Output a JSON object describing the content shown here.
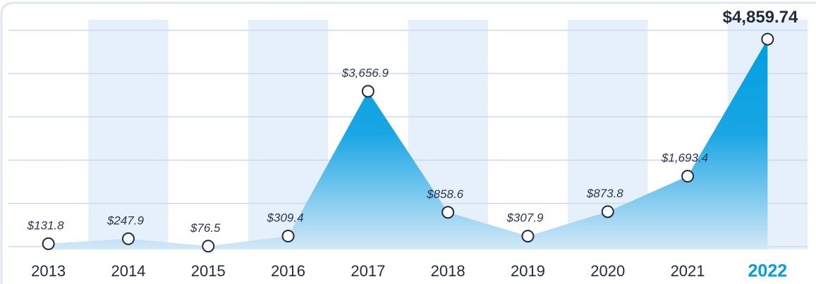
{
  "chart_data": {
    "type": "area",
    "categories": [
      "2013",
      "2014",
      "2015",
      "2016",
      "2017",
      "2018",
      "2019",
      "2020",
      "2021",
      "2022"
    ],
    "values": [
      131.8,
      247.9,
      76.5,
      309.4,
      3656.9,
      858.6,
      307.9,
      873.8,
      1693.4,
      4859.74
    ],
    "value_labels": [
      "$131.8",
      "$247.9",
      "$76.5",
      "$309.4",
      "$3,656.9",
      "$858.6",
      "$307.9",
      "$873.8",
      "$1,693.4",
      "$4,859.74"
    ],
    "color": "#009fe0",
    "highlight_index": 9,
    "ylim": [
      0,
      5000
    ],
    "yticks": [
      0,
      1000,
      2000,
      3000,
      4000,
      5000
    ],
    "grid": true
  }
}
